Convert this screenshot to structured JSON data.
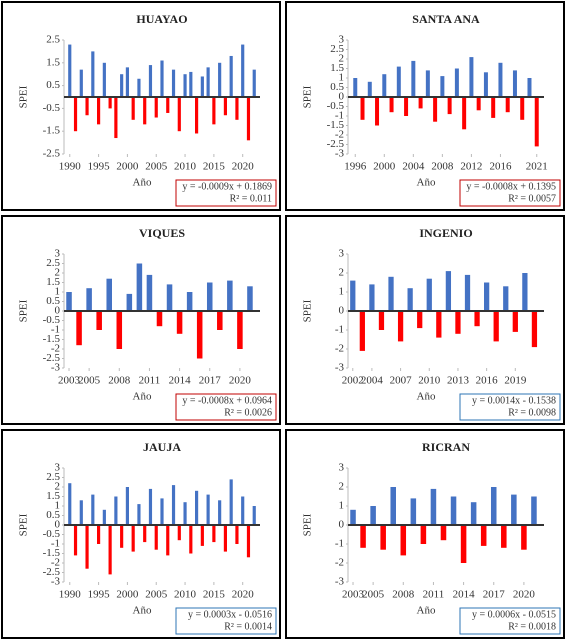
{
  "chart_data": [
    {
      "type": "bar",
      "title": "HUAYAO",
      "y_label": "SPEI",
      "x_label": "Año",
      "equation": "y = -0.0009x + 0.1869",
      "r2": "R² = 0.011",
      "box_color": "#c00000",
      "color": "#4472c4",
      "negative_color": "#ff0000",
      "xlim": [
        1989,
        2023
      ],
      "xticks": [
        1990,
        1995,
        2000,
        2005,
        2010,
        2015,
        2020
      ],
      "ylim": [
        -2.5,
        2.5
      ],
      "yticks": [
        -2.5,
        -1.5,
        -0.5,
        0.5,
        1.5,
        2.5
      ],
      "x": [
        1990,
        1991,
        1992,
        1993,
        1994,
        1995,
        1996,
        1997,
        1998,
        1999,
        2000,
        2001,
        2002,
        2003,
        2004,
        2005,
        2006,
        2007,
        2008,
        2009,
        2010,
        2011,
        2012,
        2013,
        2014,
        2015,
        2016,
        2017,
        2018,
        2019,
        2020,
        2021,
        2022
      ],
      "values": [
        2.3,
        -1.5,
        1.2,
        -0.8,
        2.0,
        -1.2,
        1.5,
        -0.5,
        -1.8,
        1.0,
        1.3,
        -1.0,
        0.8,
        -1.2,
        1.4,
        -0.9,
        1.6,
        -0.7,
        1.2,
        -1.5,
        1.0,
        1.1,
        -1.6,
        0.9,
        1.3,
        -1.2,
        1.5,
        -0.8,
        1.8,
        -1.0,
        2.3,
        -1.9,
        1.2
      ]
    },
    {
      "type": "bar",
      "title": "SANTA ANA",
      "y_label": "SPEI",
      "x_label": "Año",
      "equation": "y = -0.0008x + 0.1395",
      "r2": "R² = 0.0057",
      "box_color": "#c00000",
      "color": "#4472c4",
      "negative_color": "#ff0000",
      "xlim": [
        1995,
        2022
      ],
      "xticks": [
        1996,
        2000,
        2004,
        2008,
        2012,
        2016,
        2021
      ],
      "ylim": [
        -3,
        3
      ],
      "yticks": [
        -3,
        -2.5,
        -2,
        -1.5,
        -1,
        -0.5,
        0,
        0.5,
        1,
        1.5,
        2,
        2.5,
        3
      ],
      "x": [
        1996,
        1997,
        1998,
        1999,
        2000,
        2001,
        2002,
        2003,
        2004,
        2005,
        2006,
        2007,
        2008,
        2009,
        2010,
        2011,
        2012,
        2013,
        2014,
        2015,
        2016,
        2017,
        2018,
        2019,
        2020,
        2021
      ],
      "values": [
        1.0,
        -1.2,
        0.8,
        -1.5,
        1.2,
        -0.8,
        1.6,
        -1.0,
        1.9,
        -0.6,
        1.4,
        -1.3,
        1.1,
        -0.9,
        1.5,
        -1.7,
        2.1,
        -0.7,
        1.3,
        -1.1,
        1.8,
        -0.8,
        1.4,
        -1.2,
        1.0,
        -2.6
      ]
    },
    {
      "type": "bar",
      "title": "VIQUES",
      "y_label": "SPEI",
      "x_label": "Año",
      "equation": "y = -0.0008x + 0.0964",
      "r2": "R² = 0.0026",
      "box_color": "#c00000",
      "color": "#4472c4",
      "negative_color": "#ff0000",
      "xlim": [
        2002.5,
        2022
      ],
      "xticks": [
        2003,
        2005,
        2008,
        2011,
        2014,
        2017,
        2020
      ],
      "ylim": [
        -3,
        3
      ],
      "yticks": [
        -3,
        -2.5,
        -2,
        -1.5,
        -1,
        -0.5,
        0,
        0.5,
        1,
        1.5,
        2,
        2.5,
        3
      ],
      "x": [
        2003,
        2004,
        2005,
        2006,
        2007,
        2008,
        2009,
        2010,
        2011,
        2012,
        2013,
        2014,
        2015,
        2016,
        2017,
        2018,
        2019,
        2020,
        2021
      ],
      "values": [
        1.0,
        -1.8,
        1.2,
        -1.0,
        1.7,
        -2.0,
        0.9,
        2.5,
        1.9,
        -0.8,
        1.4,
        -1.2,
        1.0,
        -2.5,
        1.5,
        -1.0,
        1.6,
        -2.0,
        1.3
      ]
    },
    {
      "type": "bar",
      "title": "INGENIO",
      "y_label": "SPEI",
      "x_label": "Año",
      "equation": "y = 0.0014x - 0.1538",
      "r2": "R² = 0.0098",
      "box_color": "#2e75b6",
      "color": "#4472c4",
      "negative_color": "#ff0000",
      "xlim": [
        2001.5,
        2022
      ],
      "xticks": [
        2002,
        2004,
        2007,
        2010,
        2013,
        2016,
        2019
      ],
      "ylim": [
        -3,
        3
      ],
      "yticks": [
        -3,
        -2,
        -1,
        0,
        1,
        2,
        3
      ],
      "x": [
        2002,
        2003,
        2004,
        2005,
        2006,
        2007,
        2008,
        2009,
        2010,
        2011,
        2012,
        2013,
        2014,
        2015,
        2016,
        2017,
        2018,
        2019,
        2020,
        2021
      ],
      "values": [
        1.6,
        -2.1,
        1.4,
        -1.0,
        1.8,
        -1.6,
        1.2,
        -0.9,
        1.7,
        -1.4,
        2.1,
        -1.2,
        1.9,
        -0.8,
        1.5,
        -1.6,
        1.3,
        -1.1,
        2.0,
        -1.9
      ]
    },
    {
      "type": "bar",
      "title": "JAUJA",
      "y_label": "SPEI",
      "x_label": "Año",
      "equation": "y = 0.0003x - 0.0516",
      "r2": "R² = 0.0014",
      "box_color": "#2e75b6",
      "color": "#4472c4",
      "negative_color": "#ff0000",
      "xlim": [
        1989,
        2023
      ],
      "xticks": [
        1990,
        1995,
        2000,
        2005,
        2010,
        2015,
        2020
      ],
      "ylim": [
        -3,
        3
      ],
      "yticks": [
        -3,
        -2.5,
        -2,
        -1.5,
        -1,
        -0.5,
        0,
        0.5,
        1,
        1.5,
        2,
        2.5,
        3
      ],
      "x": [
        1990,
        1991,
        1992,
        1993,
        1994,
        1995,
        1996,
        1997,
        1998,
        1999,
        2000,
        2001,
        2002,
        2003,
        2004,
        2005,
        2006,
        2007,
        2008,
        2009,
        2010,
        2011,
        2012,
        2013,
        2014,
        2015,
        2016,
        2017,
        2018,
        2019,
        2020,
        2021,
        2022
      ],
      "values": [
        2.2,
        -1.6,
        1.3,
        -2.3,
        1.6,
        -1.0,
        0.8,
        -2.6,
        1.5,
        -1.2,
        2.0,
        -1.4,
        1.1,
        -0.9,
        1.9,
        -1.3,
        1.4,
        -1.6,
        2.1,
        -0.8,
        1.2,
        -1.5,
        1.8,
        -1.1,
        1.6,
        -0.9,
        1.3,
        -1.4,
        2.4,
        -1.0,
        1.5,
        -1.7,
        1.0
      ]
    },
    {
      "type": "bar",
      "title": "RICRAN",
      "y_label": "SPEI",
      "x_label": "Año",
      "equation": "y = 0.0006x - 0.0515",
      "r2": "R² = 0.0018",
      "box_color": "#2e75b6",
      "color": "#4472c4",
      "negative_color": "#ff0000",
      "xlim": [
        2002.5,
        2022
      ],
      "xticks": [
        2003,
        2005,
        2008,
        2011,
        2014,
        2017,
        2020
      ],
      "ylim": [
        -3,
        3
      ],
      "yticks": [
        -3,
        -2,
        -1,
        0,
        1,
        2,
        3
      ],
      "x": [
        2003,
        2004,
        2005,
        2006,
        2007,
        2008,
        2009,
        2010,
        2011,
        2012,
        2013,
        2014,
        2015,
        2016,
        2017,
        2018,
        2019,
        2020,
        2021
      ],
      "values": [
        0.8,
        -1.2,
        1.0,
        -1.3,
        2.0,
        -1.6,
        1.4,
        -1.0,
        1.9,
        -0.8,
        1.5,
        -2.0,
        1.2,
        -1.1,
        2.0,
        -1.2,
        1.6,
        -1.3,
        1.5
      ]
    }
  ]
}
